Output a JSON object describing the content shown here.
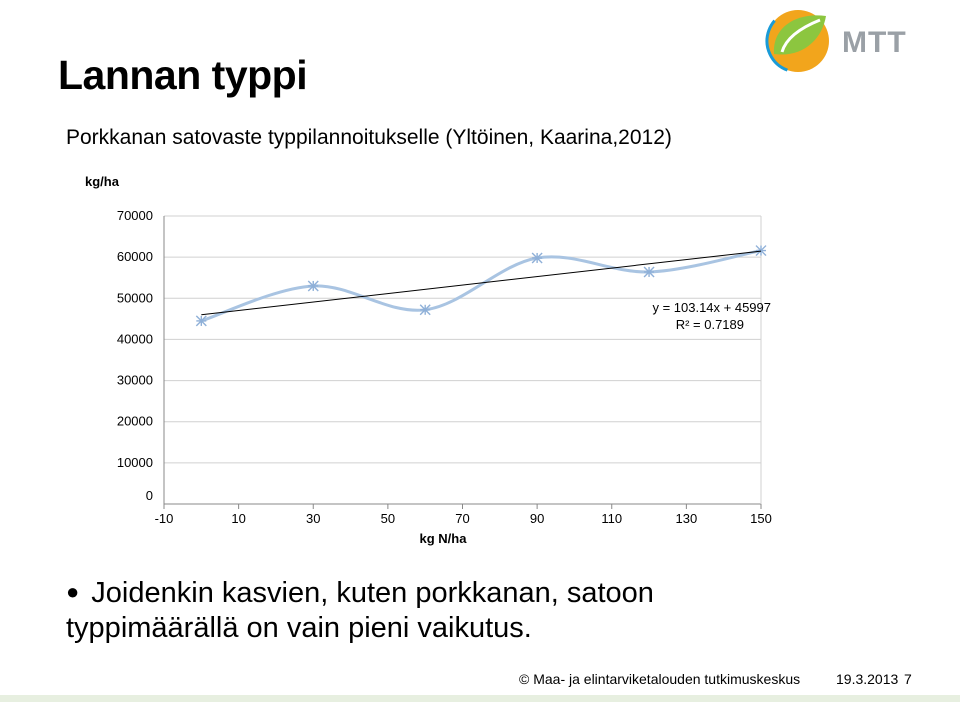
{
  "slide": {
    "title": "Lannan typpi",
    "bullet": "Joidenkin kasvien, kuten porkkanan, satoon typpimäärällä on vain pieni vaikutus.",
    "footer_org": "© Maa- ja elintarviketalouden tutkimuskeskus",
    "footer_date": "19.3.2013",
    "footer_page": "7",
    "logo_text": "MTT"
  },
  "chart_data": {
    "type": "scatter",
    "title": "Porkkanan satovaste typpilannoitukselle (Yltöinen, Kaarina,2012)",
    "ylabel": "kg/ha",
    "xlabel": "kg N/ha",
    "xlim": [
      -10,
      150
    ],
    "ylim": [
      0,
      70000
    ],
    "xticks": [
      -10,
      10,
      30,
      50,
      70,
      90,
      110,
      130,
      150
    ],
    "yticks": [
      0,
      10000,
      20000,
      30000,
      40000,
      50000,
      60000,
      70000
    ],
    "grid": true,
    "series": [
      {
        "x": [
          0,
          30,
          60,
          90,
          120,
          150
        ],
        "y": [
          44500,
          53000,
          47200,
          59800,
          56400,
          61600
        ],
        "color": "#a9c4e2",
        "smooth": true,
        "marker": "asterisk"
      }
    ],
    "trendline": {
      "type": "linear",
      "slope": 103.14,
      "intercept": 45997,
      "color": "#000000"
    },
    "annotations": {
      "equation": "y = 103.14x + 45997",
      "r2": "R² = 0.7189"
    }
  }
}
